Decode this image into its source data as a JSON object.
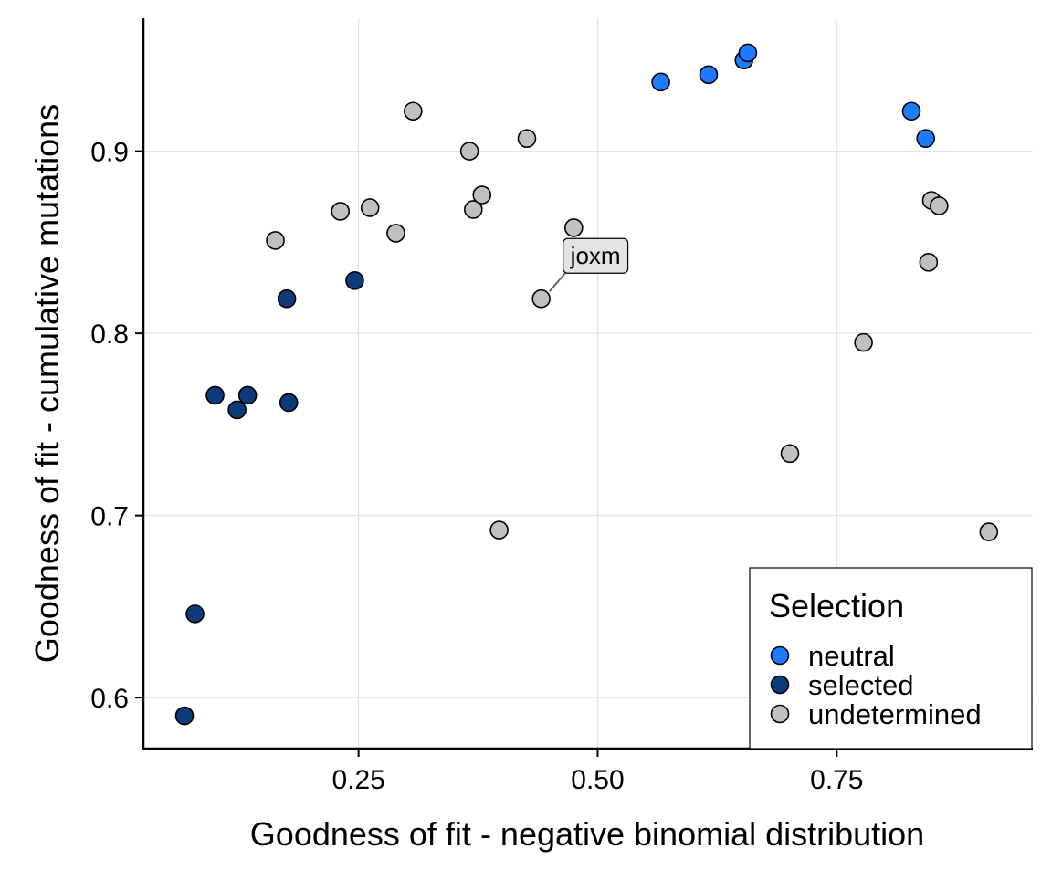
{
  "chart_data": {
    "type": "scatter",
    "title": "",
    "xlabel": "Goodness of fit - negative binomial distribution",
    "ylabel": "Goodness of fit - cumulative mutations",
    "xlim": [
      0.025,
      0.955
    ],
    "ylim": [
      0.572,
      0.973
    ],
    "x_ticks": [
      0.25,
      0.5,
      0.75
    ],
    "x_tick_labels": [
      "0.25",
      "0.50",
      "0.75"
    ],
    "y_ticks": [
      0.6,
      0.7,
      0.8,
      0.9
    ],
    "y_tick_labels": [
      "0.6",
      "0.7",
      "0.8",
      "0.9"
    ],
    "grid": true,
    "legend": {
      "title": "Selection",
      "position": "bottom-right",
      "entries": [
        {
          "label": "neutral",
          "color": "#1e7bff"
        },
        {
          "label": "selected",
          "color": "#0d3a7a"
        },
        {
          "label": "undetermined",
          "color": "#c0c0c0"
        }
      ]
    },
    "series": [
      {
        "name": "neutral",
        "color": "#1e7bff",
        "points": [
          {
            "x": 0.566,
            "y": 0.938
          },
          {
            "x": 0.616,
            "y": 0.942
          },
          {
            "x": 0.653,
            "y": 0.95
          },
          {
            "x": 0.657,
            "y": 0.954
          },
          {
            "x": 0.828,
            "y": 0.922
          },
          {
            "x": 0.843,
            "y": 0.907
          }
        ]
      },
      {
        "name": "selected",
        "color": "#0d3a7a",
        "points": [
          {
            "x": 0.068,
            "y": 0.59
          },
          {
            "x": 0.079,
            "y": 0.646
          },
          {
            "x": 0.1,
            "y": 0.766
          },
          {
            "x": 0.123,
            "y": 0.758
          },
          {
            "x": 0.134,
            "y": 0.766
          },
          {
            "x": 0.175,
            "y": 0.819
          },
          {
            "x": 0.177,
            "y": 0.762
          },
          {
            "x": 0.246,
            "y": 0.829
          }
        ]
      },
      {
        "name": "undetermined",
        "color": "#c0c0c0",
        "points": [
          {
            "x": 0.163,
            "y": 0.851
          },
          {
            "x": 0.231,
            "y": 0.867
          },
          {
            "x": 0.262,
            "y": 0.869
          },
          {
            "x": 0.289,
            "y": 0.855
          },
          {
            "x": 0.307,
            "y": 0.922
          },
          {
            "x": 0.366,
            "y": 0.9
          },
          {
            "x": 0.37,
            "y": 0.868
          },
          {
            "x": 0.379,
            "y": 0.876
          },
          {
            "x": 0.397,
            "y": 0.692
          },
          {
            "x": 0.426,
            "y": 0.907
          },
          {
            "x": 0.441,
            "y": 0.819,
            "label": "joxm"
          },
          {
            "x": 0.475,
            "y": 0.858
          },
          {
            "x": 0.701,
            "y": 0.734
          },
          {
            "x": 0.778,
            "y": 0.795
          },
          {
            "x": 0.846,
            "y": 0.839
          },
          {
            "x": 0.849,
            "y": 0.873
          },
          {
            "x": 0.857,
            "y": 0.87
          },
          {
            "x": 0.909,
            "y": 0.691
          }
        ]
      }
    ],
    "annotations": [
      {
        "text": "joxm",
        "x": 0.441,
        "y": 0.819
      }
    ]
  }
}
